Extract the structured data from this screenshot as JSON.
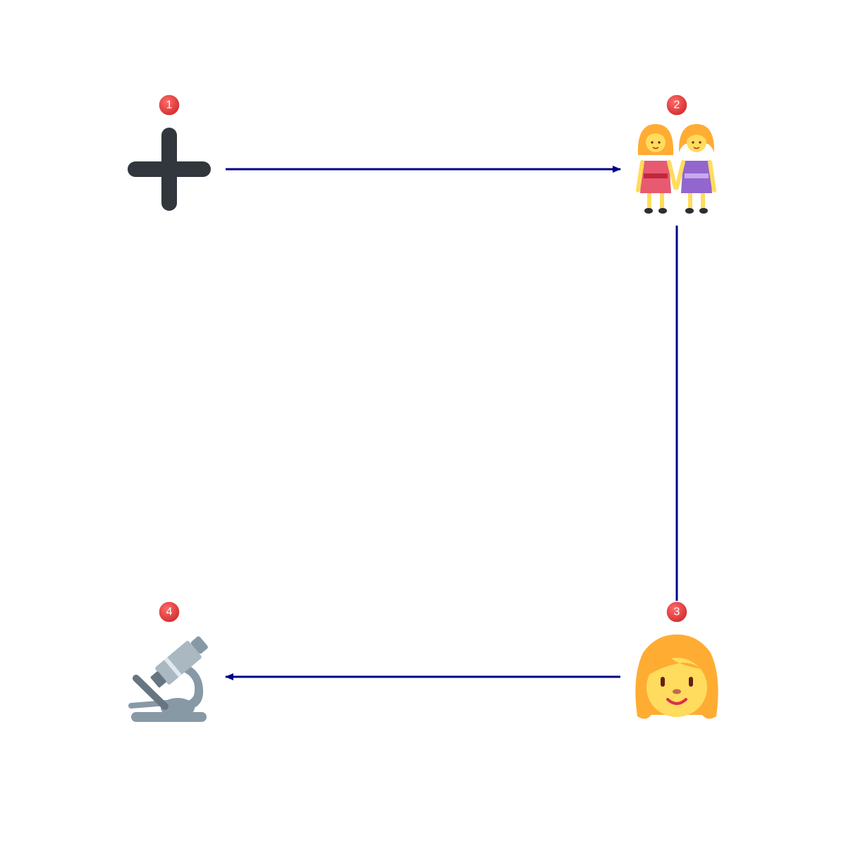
{
  "diagram": {
    "accent_color": "#00008B",
    "badge_color": "#E53935",
    "nodes": [
      {
        "id": "n1",
        "badge": "1",
        "icon": "plus-icon"
      },
      {
        "id": "n2",
        "badge": "2",
        "icon": "two-women-holding-hands-icon"
      },
      {
        "id": "n3",
        "badge": "3",
        "icon": "woman-face-icon"
      },
      {
        "id": "n4",
        "badge": "4",
        "icon": "microscope-icon"
      }
    ],
    "edges": [
      {
        "from": "n1",
        "to": "n2"
      },
      {
        "from": "n2",
        "to": "n3"
      },
      {
        "from": "n3",
        "to": "n4"
      }
    ]
  }
}
